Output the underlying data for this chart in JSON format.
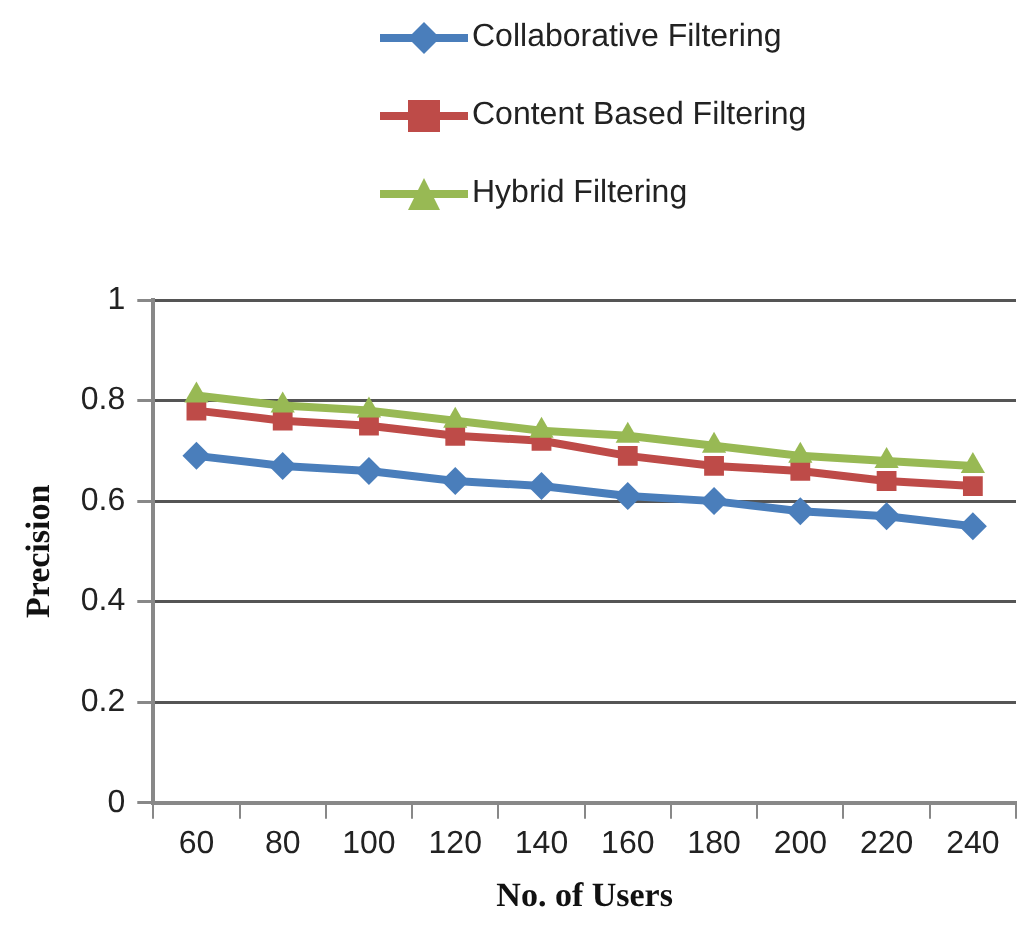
{
  "chart_data": {
    "type": "line",
    "xlabel": "No. of Users",
    "ylabel": "Precision",
    "categories": [
      "60",
      "80",
      "100",
      "120",
      "140",
      "160",
      "180",
      "200",
      "220",
      "240"
    ],
    "series": [
      {
        "name": "Collaborative Filtering",
        "color": "#4a7ebb",
        "marker": "diamond",
        "values": [
          0.69,
          0.67,
          0.66,
          0.64,
          0.63,
          0.61,
          0.6,
          0.58,
          0.57,
          0.55
        ]
      },
      {
        "name": "Content Based Filtering",
        "color": "#be4b48",
        "marker": "square",
        "values": [
          0.78,
          0.76,
          0.75,
          0.73,
          0.72,
          0.69,
          0.67,
          0.66,
          0.64,
          0.63
        ]
      },
      {
        "name": "Hybrid Filtering",
        "color": "#98b954",
        "marker": "triangle",
        "values": [
          0.81,
          0.79,
          0.78,
          0.76,
          0.74,
          0.73,
          0.71,
          0.69,
          0.68,
          0.67
        ]
      }
    ],
    "ylim": [
      0,
      1
    ],
    "yticks": [
      0,
      0.2,
      0.4,
      0.6,
      0.8,
      1
    ],
    "grid": "y",
    "legend": "top"
  }
}
